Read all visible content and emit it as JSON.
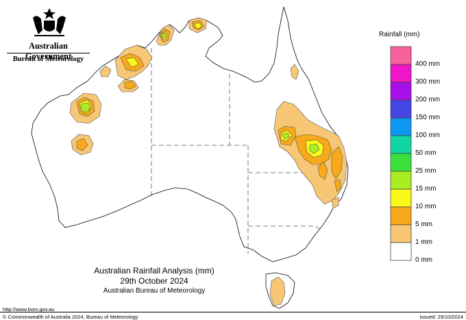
{
  "branding": {
    "government": "Australian Government",
    "agency": "Bureau of Meteorology",
    "crest_icon": "coat-of-arms-icon"
  },
  "title": {
    "line1": "Australian Rainfall Analysis (mm)",
    "line2": "29th October 2024",
    "line3": "Australian Bureau of Meteorology"
  },
  "legend": {
    "title": "Rainfall (mm)",
    "items": [
      {
        "label": "",
        "color": "#f9619d"
      },
      {
        "label": "400 mm",
        "color": "#f015c9"
      },
      {
        "label": "300 mm",
        "color": "#a80ee8"
      },
      {
        "label": "200 mm",
        "color": "#4545e6"
      },
      {
        "label": "150 mm",
        "color": "#0c97f0"
      },
      {
        "label": "100 mm",
        "color": "#11d6a3"
      },
      {
        "label": "50 mm",
        "color": "#3be03b"
      },
      {
        "label": "25 mm",
        "color": "#aaee22"
      },
      {
        "label": "15 mm",
        "color": "#fafa1a"
      },
      {
        "label": "10 mm",
        "color": "#f7a91a"
      },
      {
        "label": "5 mm",
        "color": "#f7c775"
      },
      {
        "label": "1 mm",
        "color": "#ffffff"
      },
      {
        "label": "0 mm",
        "color": ""
      }
    ]
  },
  "footer": {
    "url": "http://www.bom.gov.au",
    "copyright": "© Commonwealth of Australia 2024, Bureau of Meteorology",
    "issued": "Issued: 29/10/2024"
  },
  "colors": {
    "coast": "#000000",
    "border": "#555555"
  }
}
